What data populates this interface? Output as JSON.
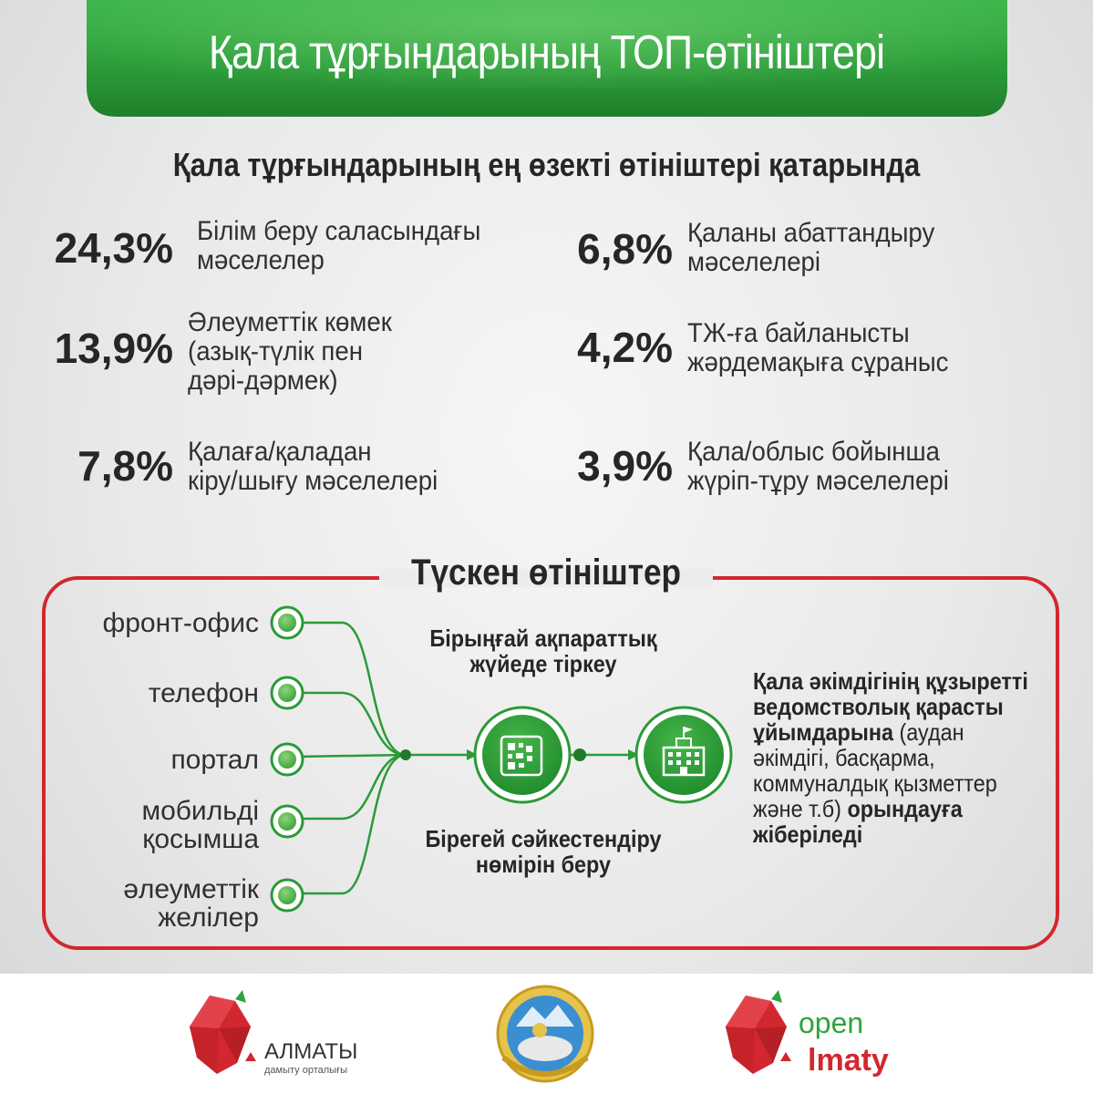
{
  "header": {
    "title": "Қала тұрғындарының ТОП-өтініштері"
  },
  "subtitle": "Қала тұрғындарының ең өзекті өтініштері қатарында",
  "stats": [
    {
      "percent": "24,3%",
      "text": "Білім беру саласындағы\nмәселелер"
    },
    {
      "percent": "13,9%",
      "text": "Әлеуметтік көмек\n(азық-түлік пен\nдәрі-дәрмек)"
    },
    {
      "percent": "7,8%",
      "text": "Қалаға/қаладан\nкіру/шығу мәселелері"
    },
    {
      "percent": "6,8%",
      "text": "Қаланы абаттандыру\nмәселелері"
    },
    {
      "percent": "4,2%",
      "text": "ТЖ-ға байланысты\nжәрдемақыға сұраныс"
    },
    {
      "percent": "3,9%",
      "text": "Қала/облыс бойынша\nжүріп-тұру мәселелері"
    }
  ],
  "flow": {
    "title": "Түскен өтініштер",
    "sources": [
      {
        "label": "фронт-офис"
      },
      {
        "label": "телефон"
      },
      {
        "label": "портал"
      },
      {
        "label": "мобильді\nқосымша"
      },
      {
        "label": "әлеуметтік\nжелілер"
      }
    ],
    "register_label": "Бірыңғай ақпараттық\nжүйеде тіркеу",
    "id_label": "Бірегей сәйкестендіру\nнөмірін беру",
    "result_bold_1": "Қала әкімдігінің құзыретті ведомстволық қарасты ұйымдарына",
    "result_normal": "(аудан әкімдігі, басқарма, коммуналдық қызметтер және т.б)",
    "result_bold_2": "орындауға жіберіледі",
    "icons": [
      "qr-document-icon",
      "building-icon"
    ]
  },
  "footer": {
    "left_logo_name": "АЛМАТЫ",
    "left_logo_sub": "дамыту орталығы",
    "right_logo_top": "open",
    "right_logo_bottom": "lmaty"
  },
  "colors": {
    "green": "#2fa33c",
    "dark_green": "#1f7a2c",
    "red": "#d3272f",
    "text": "#262626"
  }
}
